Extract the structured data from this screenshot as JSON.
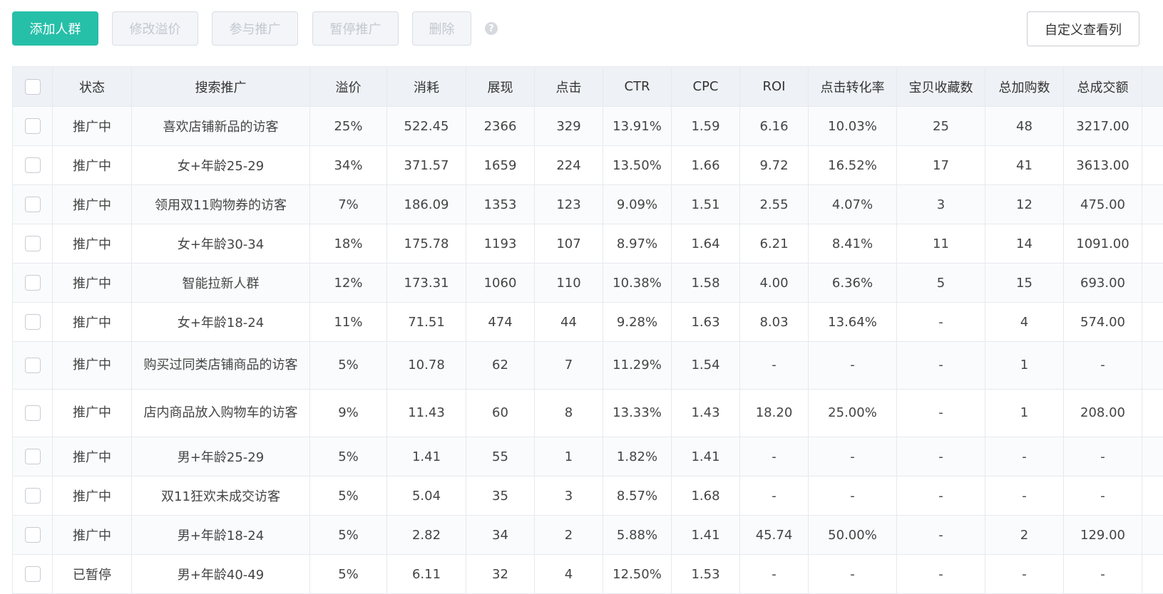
{
  "toolbar": {
    "add_label": "添加人群",
    "edit_premium_label": "修改溢价",
    "join_promo_label": "参与推广",
    "pause_promo_label": "暂停推广",
    "delete_label": "删除",
    "help_glyph": "?",
    "custom_columns_label": "自定义查看列"
  },
  "table": {
    "headers": [
      "状态",
      "搜索推广",
      "溢价",
      "消耗",
      "展现",
      "点击",
      "CTR",
      "CPC",
      "ROI",
      "点击转化率",
      "宝贝收藏数",
      "总加购数",
      "总成交额"
    ],
    "rows": [
      {
        "status": "推广中",
        "name": "喜欢店铺新品的访客",
        "premium": "25%",
        "spend": "522.45",
        "impressions": "2366",
        "clicks": "329",
        "ctr": "13.91%",
        "cpc": "1.59",
        "roi": "6.16",
        "cvr": "10.03%",
        "favorites": "25",
        "carts": "48",
        "gmv": "3217.00"
      },
      {
        "status": "推广中",
        "name": "女+年龄25-29",
        "premium": "34%",
        "spend": "371.57",
        "impressions": "1659",
        "clicks": "224",
        "ctr": "13.50%",
        "cpc": "1.66",
        "roi": "9.72",
        "cvr": "16.52%",
        "favorites": "17",
        "carts": "41",
        "gmv": "3613.00"
      },
      {
        "status": "推广中",
        "name": "领用双11购物券的访客",
        "premium": "7%",
        "spend": "186.09",
        "impressions": "1353",
        "clicks": "123",
        "ctr": "9.09%",
        "cpc": "1.51",
        "roi": "2.55",
        "cvr": "4.07%",
        "favorites": "3",
        "carts": "12",
        "gmv": "475.00"
      },
      {
        "status": "推广中",
        "name": "女+年龄30-34",
        "premium": "18%",
        "spend": "175.78",
        "impressions": "1193",
        "clicks": "107",
        "ctr": "8.97%",
        "cpc": "1.64",
        "roi": "6.21",
        "cvr": "8.41%",
        "favorites": "11",
        "carts": "14",
        "gmv": "1091.00"
      },
      {
        "status": "推广中",
        "name": "智能拉新人群",
        "premium": "12%",
        "spend": "173.31",
        "impressions": "1060",
        "clicks": "110",
        "ctr": "10.38%",
        "cpc": "1.58",
        "roi": "4.00",
        "cvr": "6.36%",
        "favorites": "5",
        "carts": "15",
        "gmv": "693.00"
      },
      {
        "status": "推广中",
        "name": "女+年龄18-24",
        "premium": "11%",
        "spend": "71.51",
        "impressions": "474",
        "clicks": "44",
        "ctr": "9.28%",
        "cpc": "1.63",
        "roi": "8.03",
        "cvr": "13.64%",
        "favorites": "-",
        "carts": "4",
        "gmv": "574.00"
      },
      {
        "status": "推广中",
        "name": "购买过同类店铺商品的访客",
        "premium": "5%",
        "spend": "10.78",
        "impressions": "62",
        "clicks": "7",
        "ctr": "11.29%",
        "cpc": "1.54",
        "roi": "-",
        "cvr": "-",
        "favorites": "-",
        "carts": "1",
        "gmv": "-"
      },
      {
        "status": "推广中",
        "name": "店内商品放入购物车的访客",
        "premium": "9%",
        "spend": "11.43",
        "impressions": "60",
        "clicks": "8",
        "ctr": "13.33%",
        "cpc": "1.43",
        "roi": "18.20",
        "cvr": "25.00%",
        "favorites": "-",
        "carts": "1",
        "gmv": "208.00"
      },
      {
        "status": "推广中",
        "name": "男+年龄25-29",
        "premium": "5%",
        "spend": "1.41",
        "impressions": "55",
        "clicks": "1",
        "ctr": "1.82%",
        "cpc": "1.41",
        "roi": "-",
        "cvr": "-",
        "favorites": "-",
        "carts": "-",
        "gmv": "-"
      },
      {
        "status": "推广中",
        "name": "双11狂欢未成交访客",
        "premium": "5%",
        "spend": "5.04",
        "impressions": "35",
        "clicks": "3",
        "ctr": "8.57%",
        "cpc": "1.68",
        "roi": "-",
        "cvr": "-",
        "favorites": "-",
        "carts": "-",
        "gmv": "-"
      },
      {
        "status": "推广中",
        "name": "男+年龄18-24",
        "premium": "5%",
        "spend": "2.82",
        "impressions": "34",
        "clicks": "2",
        "ctr": "5.88%",
        "cpc": "1.41",
        "roi": "45.74",
        "cvr": "50.00%",
        "favorites": "-",
        "carts": "2",
        "gmv": "129.00"
      },
      {
        "status": "已暂停",
        "name": "男+年龄40-49",
        "premium": "5%",
        "spend": "6.11",
        "impressions": "32",
        "clicks": "4",
        "ctr": "12.50%",
        "cpc": "1.53",
        "roi": "-",
        "cvr": "-",
        "favorites": "-",
        "carts": "-",
        "gmv": "-"
      }
    ]
  },
  "colors": {
    "primary": "#26bfa8",
    "header_bg": "#eef1f5",
    "border": "#e6e9ee"
  }
}
